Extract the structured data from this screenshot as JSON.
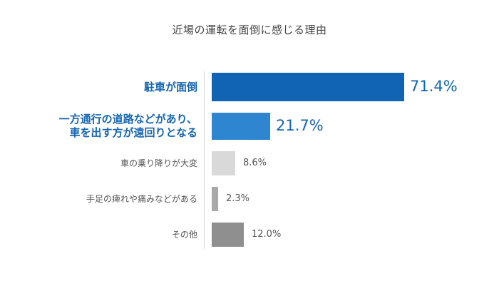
{
  "chart_data": {
    "type": "bar",
    "orientation": "horizontal",
    "title": "近場の運転を面倒に感じる理由",
    "xlabel": "",
    "ylabel": "",
    "grid": false,
    "legend": "none",
    "xlim": [
      0,
      71.4
    ],
    "categories": [
      [
        "駐車が面倒"
      ],
      [
        "一方通行の道路などがあり、",
        "車を出す方が遠回りとなる"
      ],
      [
        "車の乗り降りが大変"
      ],
      [
        "手足の痺れや痛みなどがある"
      ],
      [
        "その他"
      ]
    ],
    "values": [
      71.4,
      21.7,
      8.6,
      2.3,
      12.0
    ],
    "value_labels": [
      "71.4%",
      "21.7%",
      "8.6%",
      "2.3%",
      "12.0%"
    ],
    "emphasized": [
      true,
      true,
      false,
      false,
      false
    ],
    "colors": [
      "#1163b4",
      "#2e86d0",
      "#d9d9d9",
      "#a9a9a9",
      "#8f8f8f"
    ]
  }
}
